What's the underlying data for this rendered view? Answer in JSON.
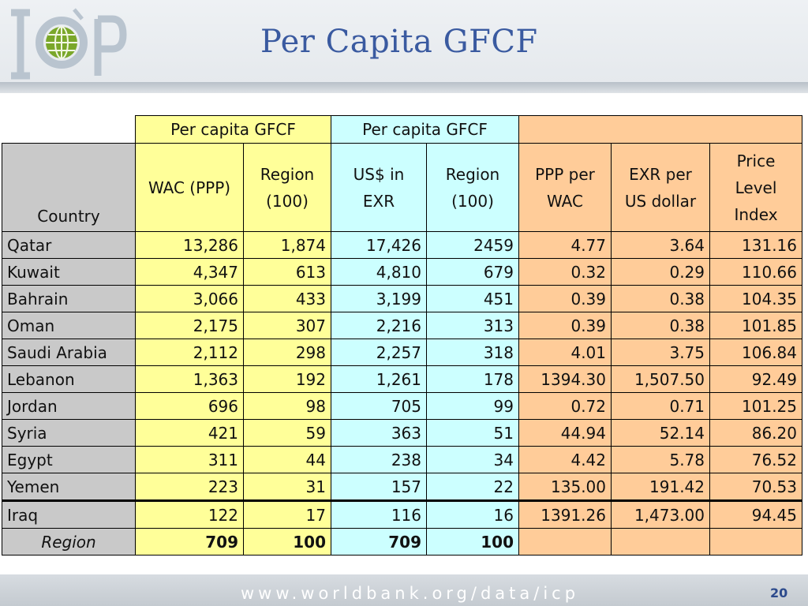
{
  "logo": {
    "text": "ICP",
    "icon": "globe-icon"
  },
  "title": "Per Capita GFCF",
  "table": {
    "group_headers": [
      "Per capita GFCF",
      "Per capita GFCF",
      ""
    ],
    "columns": [
      "Country",
      "WAC (PPP)",
      "Region (100)",
      "US$ in EXR",
      "Region (100)",
      "PPP per WAC",
      "EXR per US dollar",
      "Price Level Index"
    ],
    "rows": [
      [
        "Qatar",
        "13,286",
        "1,874",
        "17,426",
        "2459",
        "4.77",
        "3.64",
        "131.16"
      ],
      [
        "Kuwait",
        "4,347",
        "613",
        "4,810",
        "679",
        "0.32",
        "0.29",
        "110.66"
      ],
      [
        "Bahrain",
        "3,066",
        "433",
        "3,199",
        "451",
        "0.39",
        "0.38",
        "104.35"
      ],
      [
        "Oman",
        "2,175",
        "307",
        "2,216",
        "313",
        "0.39",
        "0.38",
        "101.85"
      ],
      [
        "Saudi Arabia",
        "2,112",
        "298",
        "2,257",
        "318",
        "4.01",
        "3.75",
        "106.84"
      ],
      [
        "Lebanon",
        "1,363",
        "192",
        "1,261",
        "178",
        "1394.30",
        "1,507.50",
        "92.49"
      ],
      [
        "Jordan",
        "696",
        "98",
        "705",
        "99",
        "0.72",
        "0.71",
        "101.25"
      ],
      [
        "Syria",
        "421",
        "59",
        "363",
        "51",
        "44.94",
        "52.14",
        "86.20"
      ],
      [
        "Egypt",
        "311",
        "44",
        "238",
        "34",
        "4.42",
        "5.78",
        "76.52"
      ],
      [
        "Yemen",
        "223",
        "31",
        "157",
        "22",
        "135.00",
        "191.42",
        "70.53"
      ],
      [
        "Iraq",
        "122",
        "17",
        "116",
        "16",
        "1391.26",
        "1,473.00",
        "94.45"
      ]
    ],
    "region_row": [
      "Region",
      "709",
      "100",
      "709",
      "100",
      "",
      "",
      ""
    ]
  },
  "footer": {
    "url": "www.worldbank.org/data/icp",
    "page_number": "20"
  },
  "colors": {
    "yellow": "#ffff99",
    "cyan": "#ccffff",
    "orange": "#ffcc99",
    "gray": "#c9c9c9",
    "title": "#3a5aa0"
  }
}
